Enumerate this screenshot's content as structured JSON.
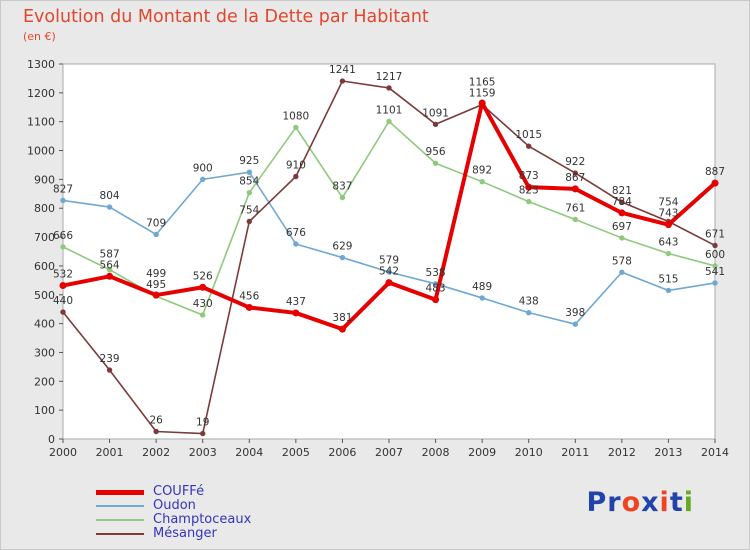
{
  "title": "Evolution du Montant de la Dette par Habitant",
  "subtitle": "(en €)",
  "colors": {
    "title": "#e2472e",
    "legend_label": "#3535bb",
    "axis_text": "#333333",
    "value_label": "#333333",
    "tick": "#555555",
    "plot_border": "#aaaaaa",
    "plot_background": "#ffffff",
    "page_background": "#e9e9e9"
  },
  "chart_data": {
    "type": "line",
    "title": "Evolution du Montant de la Dette par Habitant",
    "ylabel": "(en €)",
    "x": [
      "2000",
      "2001",
      "2002",
      "2003",
      "2004",
      "2005",
      "2006",
      "2007",
      "2008",
      "2009",
      "2010",
      "2011",
      "2012",
      "2013",
      "2014"
    ],
    "ylim": [
      0,
      1300
    ],
    "ytick_step": 100,
    "grid": false,
    "legend_position": "bottom-left",
    "series": [
      {
        "name": "COUFFé",
        "color": "#e60000",
        "width": 4,
        "values": [
          532,
          564,
          499,
          526,
          456,
          437,
          381,
          542,
          483,
          1165,
          873,
          867,
          784,
          743,
          887
        ]
      },
      {
        "name": "Oudon",
        "color": "#6fa8d2",
        "width": 1.6,
        "values": [
          827,
          804,
          709,
          900,
          925,
          676,
          629,
          579,
          538,
          489,
          438,
          398,
          578,
          515,
          541
        ]
      },
      {
        "name": "Champtoceaux",
        "color": "#8fc97c",
        "width": 1.6,
        "values": [
          666,
          587,
          495,
          430,
          854,
          1080,
          837,
          1101,
          956,
          892,
          823,
          761,
          697,
          643,
          600
        ]
      },
      {
        "name": "Mésanger",
        "color": "#7d3a3a",
        "width": 1.6,
        "values": [
          440,
          239,
          26,
          19,
          754,
          910,
          1241,
          1217,
          1091,
          1159,
          1015,
          922,
          821,
          754,
          671
        ]
      }
    ]
  },
  "logo": {
    "text": "Proxiti",
    "letters": [
      {
        "ch": "P",
        "color": "#2244aa"
      },
      {
        "ch": "r",
        "color": "#2244aa"
      },
      {
        "ch": "o",
        "color": "#ee4422"
      },
      {
        "ch": "x",
        "color": "#2244aa"
      },
      {
        "ch": "i",
        "color": "#ee4422"
      },
      {
        "ch": "t",
        "color": "#2244aa"
      },
      {
        "ch": "i",
        "color": "#66aa22"
      }
    ]
  }
}
